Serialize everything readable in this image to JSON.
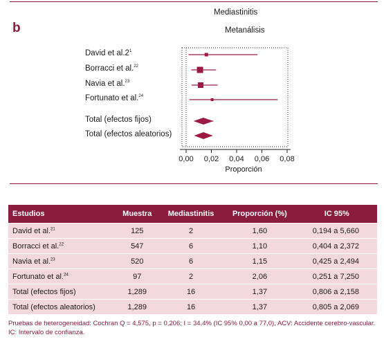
{
  "figure": {
    "panel_letter": "b",
    "title": "Mediastinitis",
    "subtitle": "Metanálisis"
  },
  "chart_data": {
    "type": "forest",
    "title": "Mediastinitis",
    "subtitle": "Metanálisis",
    "xlabel": "Proporción",
    "xlim": [
      0.0,
      0.08
    ],
    "xticks": [
      "0,00",
      "0,02",
      "0,04",
      "0,06",
      "0,08"
    ],
    "reference_line": 0.0,
    "studies": [
      {
        "label": "David et al.2",
        "ref": "1",
        "estimate": 0.016,
        "ci": [
          0.00194,
          0.0566
        ],
        "marker": "square",
        "weight": 0.3
      },
      {
        "label": "Borracci et al.",
        "ref": "22",
        "estimate": 0.011,
        "ci": [
          0.00404,
          0.02372
        ],
        "marker": "square",
        "weight": 1.0
      },
      {
        "label": "Navia et al.",
        "ref": "23",
        "estimate": 0.0115,
        "ci": [
          0.00425,
          0.02494
        ],
        "marker": "square",
        "weight": 0.9
      },
      {
        "label": "Fortunato et al.",
        "ref": "24",
        "estimate": 0.0206,
        "ci": [
          0.00251,
          0.0725
        ],
        "marker": "square",
        "weight": 0.15
      },
      {
        "label": "Total (efectos fijos)",
        "ref": "",
        "estimate": 0.0137,
        "ci": [
          0.00806,
          0.02158
        ],
        "marker": "diamond"
      },
      {
        "label": "Total (efectos aleatorios)",
        "ref": "",
        "estimate": 0.0137,
        "ci": [
          0.00805,
          0.02069
        ],
        "marker": "diamond"
      }
    ],
    "color": "#9b1b45"
  },
  "table": {
    "headers": [
      "Estudios",
      "Muestra",
      "Mediastinitis",
      "Proporción (%)",
      "IC 95%"
    ],
    "rows": [
      {
        "study": "David et al.",
        "ref": "21",
        "muestra": "125",
        "mediastinitis": "2",
        "proporcion": "1,60",
        "ic": "0,194 a 5,660"
      },
      {
        "study": "Borracci et al.",
        "ref": "22",
        "muestra": "547",
        "mediastinitis": "6",
        "proporcion": "1,10",
        "ic": "0,404 a 2,372"
      },
      {
        "study": "Navia et al.",
        "ref": "23",
        "muestra": "520",
        "mediastinitis": "6",
        "proporcion": "1,15",
        "ic": "0,425 a 2,494"
      },
      {
        "study": "Fortunato et al.",
        "ref": "24",
        "muestra": "97",
        "mediastinitis": "2",
        "proporcion": "2,06",
        "ic": "0,251 a 7,250"
      },
      {
        "study": "Total (efectos fijos)",
        "ref": "",
        "muestra": "1,289",
        "mediastinitis": "16",
        "proporcion": "1,37",
        "ic": "0,806 a 2,158"
      },
      {
        "study": "Total (efectos aleatorios)",
        "ref": "",
        "muestra": "1,289",
        "mediastinitis": "16",
        "proporcion": "1,37",
        "ic": "0,805 a 2,069"
      }
    ]
  },
  "footnote": "Pruebas de heterogeneidad: Cochran Q = 4,575, p = 0,206; I = 34,4% (IC 95% 0,00 a 77,0), ACV: Accidente cerebro-vascular. IC: Intervalo de confianza."
}
